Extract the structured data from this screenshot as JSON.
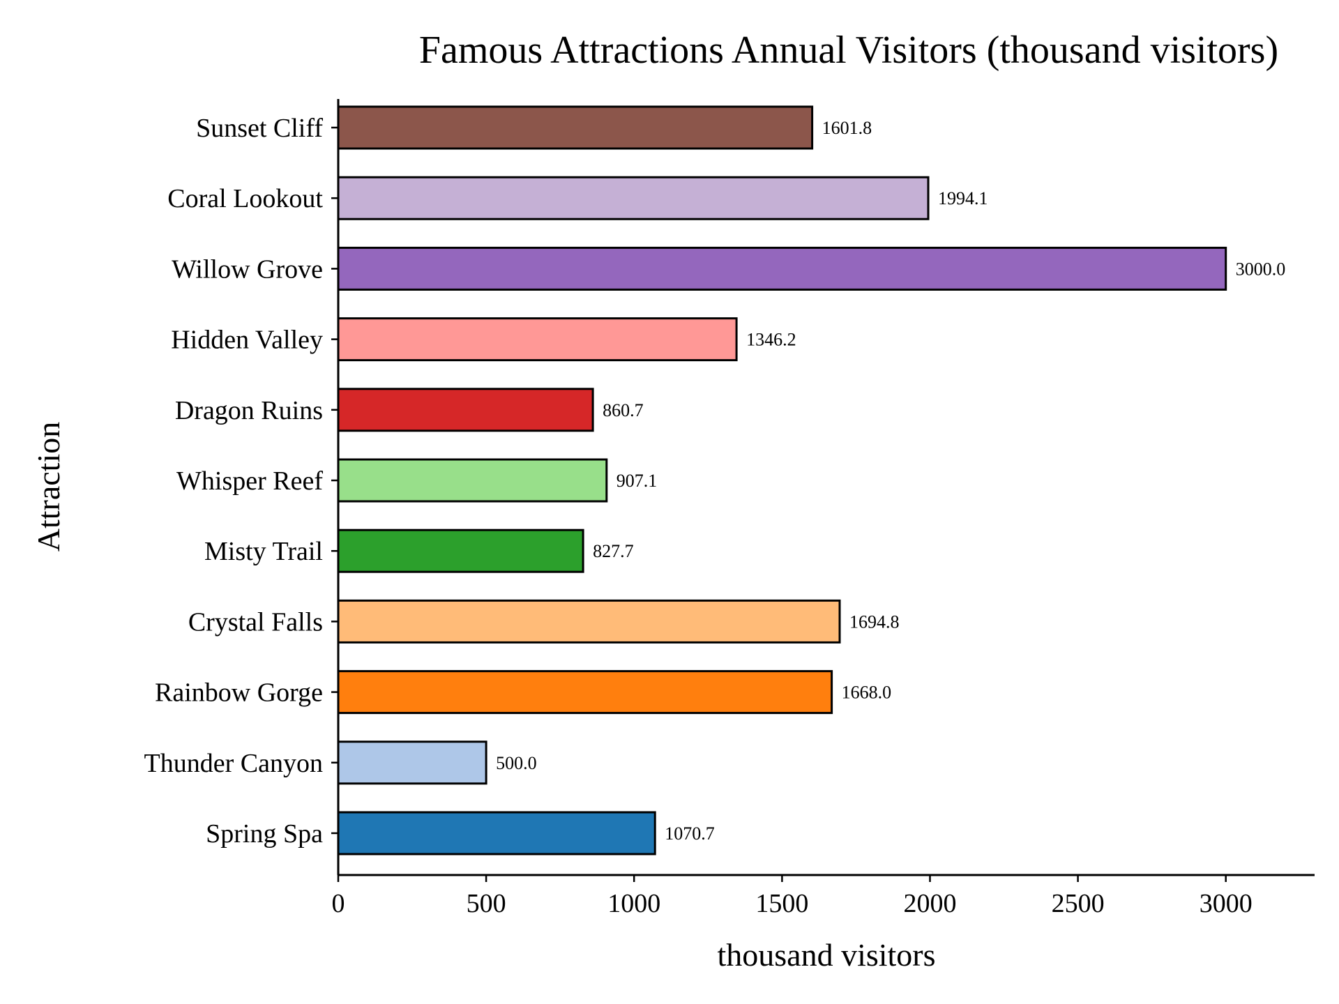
{
  "chart_data": {
    "type": "bar",
    "orientation": "horizontal",
    "title": "Famous Attractions Annual Visitors (thousand visitors)",
    "xlabel": "thousand visitors",
    "ylabel": "Attraction",
    "xlim": [
      0,
      3300
    ],
    "xticks": [
      0,
      500,
      1000,
      1500,
      2000,
      2500,
      3000
    ],
    "grid": false,
    "categories": [
      "Spring Spa",
      "Thunder Canyon",
      "Rainbow Gorge",
      "Crystal Falls",
      "Misty Trail",
      "Whisper Reef",
      "Dragon Ruins",
      "Hidden Valley",
      "Willow Grove",
      "Coral Lookout",
      "Sunset Cliff"
    ],
    "values": [
      1070.7,
      500.0,
      1668.0,
      1694.8,
      827.7,
      907.1,
      860.7,
      1346.2,
      3000.0,
      1994.1,
      1601.8
    ],
    "value_labels": [
      "1070.7",
      "500.0",
      "1668.0",
      "1694.8",
      "827.7",
      "907.1",
      "860.7",
      "1346.2",
      "3000.0",
      "1994.1",
      "1601.8"
    ],
    "colors": [
      "#1f77b4",
      "#aec7e8",
      "#ff7f0e",
      "#ffbb78",
      "#2ca02c",
      "#98df8a",
      "#d62728",
      "#ff9896",
      "#9467bd",
      "#c5b0d5",
      "#8c564b"
    ]
  }
}
